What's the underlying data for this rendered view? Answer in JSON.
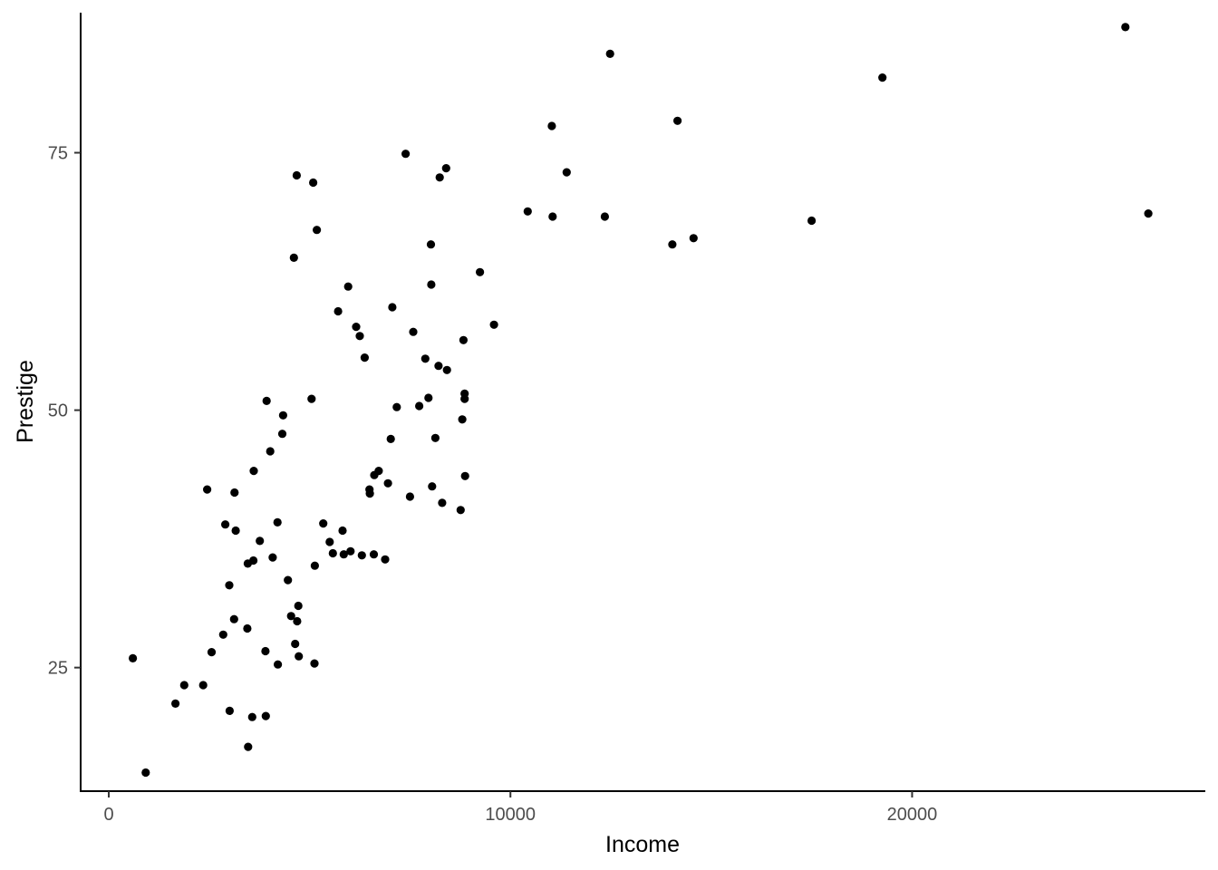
{
  "chart_data": {
    "type": "scatter",
    "title": "",
    "xlabel": "Income",
    "ylabel": "Prestige",
    "xlim": [
      -700,
      27300
    ],
    "ylim": [
      13,
      88.6
    ],
    "x_ticks": [
      0,
      10000,
      20000
    ],
    "x_tick_labels": [
      "0",
      "10000",
      "20000"
    ],
    "y_ticks": [
      25,
      50,
      75
    ],
    "y_tick_labels": [
      "25",
      "50",
      "75"
    ],
    "grid": false,
    "point_color": "#000000",
    "points": [
      {
        "x": 600,
        "y": 25.9
      },
      {
        "x": 920,
        "y": 14.8
      },
      {
        "x": 1660,
        "y": 21.5
      },
      {
        "x": 1880,
        "y": 23.3
      },
      {
        "x": 2350,
        "y": 23.3
      },
      {
        "x": 2450,
        "y": 42.3
      },
      {
        "x": 2560,
        "y": 26.5
      },
      {
        "x": 2850,
        "y": 28.2
      },
      {
        "x": 2900,
        "y": 38.9
      },
      {
        "x": 3000,
        "y": 33.0
      },
      {
        "x": 3010,
        "y": 20.8
      },
      {
        "x": 3120,
        "y": 29.7
      },
      {
        "x": 3130,
        "y": 42.0
      },
      {
        "x": 3160,
        "y": 38.3
      },
      {
        "x": 3450,
        "y": 28.8
      },
      {
        "x": 3460,
        "y": 35.1
      },
      {
        "x": 3470,
        "y": 17.3
      },
      {
        "x": 3570,
        "y": 20.2
      },
      {
        "x": 3600,
        "y": 35.4
      },
      {
        "x": 3610,
        "y": 44.1
      },
      {
        "x": 3760,
        "y": 37.3
      },
      {
        "x": 3900,
        "y": 26.6
      },
      {
        "x": 3910,
        "y": 20.3
      },
      {
        "x": 3930,
        "y": 50.9
      },
      {
        "x": 4020,
        "y": 46.0
      },
      {
        "x": 4080,
        "y": 35.7
      },
      {
        "x": 4200,
        "y": 39.1
      },
      {
        "x": 4210,
        "y": 25.3
      },
      {
        "x": 4320,
        "y": 47.7
      },
      {
        "x": 4340,
        "y": 49.5
      },
      {
        "x": 4460,
        "y": 33.5
      },
      {
        "x": 4540,
        "y": 30.0
      },
      {
        "x": 4610,
        "y": 64.8
      },
      {
        "x": 4640,
        "y": 27.3
      },
      {
        "x": 4680,
        "y": 72.8
      },
      {
        "x": 4690,
        "y": 29.5
      },
      {
        "x": 4720,
        "y": 31.0
      },
      {
        "x": 4730,
        "y": 26.1
      },
      {
        "x": 5050,
        "y": 51.1
      },
      {
        "x": 5090,
        "y": 72.1
      },
      {
        "x": 5120,
        "y": 25.4
      },
      {
        "x": 5130,
        "y": 34.9
      },
      {
        "x": 5180,
        "y": 67.5
      },
      {
        "x": 5340,
        "y": 39.0
      },
      {
        "x": 5500,
        "y": 37.2
      },
      {
        "x": 5580,
        "y": 36.1
      },
      {
        "x": 5710,
        "y": 59.6
      },
      {
        "x": 5820,
        "y": 38.3
      },
      {
        "x": 5850,
        "y": 36.0
      },
      {
        "x": 5960,
        "y": 62.0
      },
      {
        "x": 6020,
        "y": 36.3
      },
      {
        "x": 6160,
        "y": 58.1
      },
      {
        "x": 6250,
        "y": 57.2
      },
      {
        "x": 6300,
        "y": 35.9
      },
      {
        "x": 6370,
        "y": 55.1
      },
      {
        "x": 6490,
        "y": 42.3
      },
      {
        "x": 6500,
        "y": 41.9
      },
      {
        "x": 6600,
        "y": 36.0
      },
      {
        "x": 6610,
        "y": 43.7
      },
      {
        "x": 6720,
        "y": 44.1
      },
      {
        "x": 6880,
        "y": 35.5
      },
      {
        "x": 6950,
        "y": 42.9
      },
      {
        "x": 7020,
        "y": 47.2
      },
      {
        "x": 7060,
        "y": 60.0
      },
      {
        "x": 7170,
        "y": 50.3
      },
      {
        "x": 7390,
        "y": 74.9
      },
      {
        "x": 7500,
        "y": 41.6
      },
      {
        "x": 7580,
        "y": 57.6
      },
      {
        "x": 7730,
        "y": 50.4
      },
      {
        "x": 7880,
        "y": 55.0
      },
      {
        "x": 7960,
        "y": 51.2
      },
      {
        "x": 8020,
        "y": 66.1
      },
      {
        "x": 8030,
        "y": 62.2
      },
      {
        "x": 8050,
        "y": 42.6
      },
      {
        "x": 8130,
        "y": 47.3
      },
      {
        "x": 8210,
        "y": 54.3
      },
      {
        "x": 8240,
        "y": 72.6
      },
      {
        "x": 8300,
        "y": 41.0
      },
      {
        "x": 8400,
        "y": 73.5
      },
      {
        "x": 8420,
        "y": 53.9
      },
      {
        "x": 8760,
        "y": 40.3
      },
      {
        "x": 8800,
        "y": 49.1
      },
      {
        "x": 8830,
        "y": 56.8
      },
      {
        "x": 8860,
        "y": 51.6
      },
      {
        "x": 8860,
        "y": 51.1
      },
      {
        "x": 8870,
        "y": 43.6
      },
      {
        "x": 9240,
        "y": 63.4
      },
      {
        "x": 9590,
        "y": 58.3
      },
      {
        "x": 10430,
        "y": 69.3
      },
      {
        "x": 11030,
        "y": 77.6
      },
      {
        "x": 11050,
        "y": 68.8
      },
      {
        "x": 11400,
        "y": 73.1
      },
      {
        "x": 12350,
        "y": 68.8
      },
      {
        "x": 12480,
        "y": 84.6
      },
      {
        "x": 14030,
        "y": 66.1
      },
      {
        "x": 14160,
        "y": 78.1
      },
      {
        "x": 14560,
        "y": 66.7
      },
      {
        "x": 17500,
        "y": 68.4
      },
      {
        "x": 19260,
        "y": 82.3
      },
      {
        "x": 25310,
        "y": 87.2
      },
      {
        "x": 25880,
        "y": 69.1
      }
    ]
  }
}
